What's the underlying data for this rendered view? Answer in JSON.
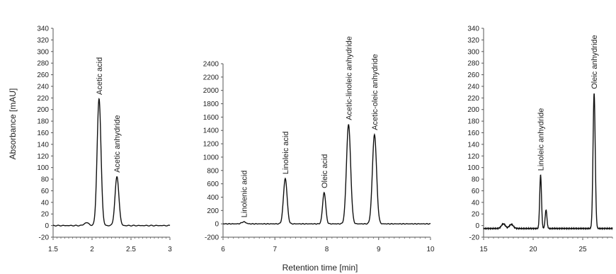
{
  "ylabel": "Absorbance [mAU]",
  "xlabel": "Retention time [min]",
  "chart_data": [
    {
      "type": "line",
      "xlim": [
        1.5,
        3
      ],
      "ylim": [
        -20,
        340
      ],
      "x_ticks": [
        "1.5",
        "2",
        "2.5",
        "3"
      ],
      "y_ticks": [
        "-20",
        "0",
        "20",
        "40",
        "60",
        "80",
        "100",
        "120",
        "140",
        "160",
        "180",
        "200",
        "220",
        "240",
        "260",
        "280",
        "300",
        "320",
        "340"
      ],
      "baseline": 0,
      "peaks": [
        {
          "label": "Acetic acid",
          "x": 2.09,
          "y": 218,
          "width": 0.025
        },
        {
          "label": "Acetic anhydride",
          "x": 2.32,
          "y": 84,
          "width": 0.025
        }
      ],
      "bumps": [
        {
          "x": 1.93,
          "y": 5,
          "width": 0.03
        }
      ]
    },
    {
      "type": "line",
      "xlim": [
        6,
        10
      ],
      "ylim": [
        -200,
        2400
      ],
      "x_ticks": [
        "6",
        "7",
        "8",
        "9",
        "10"
      ],
      "y_ticks": [
        "-200",
        "0",
        "200",
        "400",
        "600",
        "800",
        "1000",
        "1200",
        "1400",
        "1600",
        "1800",
        "2000",
        "2200",
        "2400"
      ],
      "baseline": 0,
      "peaks": [
        {
          "label": "Linolenic acid",
          "x": 6.4,
          "y": 30,
          "width": 0.04
        },
        {
          "label": "Linoleic acid",
          "x": 7.2,
          "y": 680,
          "width": 0.035
        },
        {
          "label": "Oleic acid",
          "x": 7.95,
          "y": 470,
          "width": 0.03
        },
        {
          "label": "Acetic-linoleic anhydride",
          "x": 8.42,
          "y": 1490,
          "width": 0.04
        },
        {
          "label": "Acetic-oleic anhydride",
          "x": 8.92,
          "y": 1340,
          "width": 0.04
        }
      ],
      "bumps": []
    },
    {
      "type": "line",
      "xlim": [
        15,
        28
      ],
      "ylim": [
        -20,
        340
      ],
      "x_ticks": [
        "15",
        "20",
        "25"
      ],
      "y_ticks": [
        "-20",
        "0",
        "20",
        "40",
        "60",
        "80",
        "100",
        "120",
        "140",
        "160",
        "180",
        "200",
        "220",
        "240",
        "260",
        "280",
        "300",
        "320",
        "340"
      ],
      "baseline": -5,
      "peaks": [
        {
          "label": "Linoleic anhydride",
          "x": 20.75,
          "y": 87,
          "width": 0.09
        },
        {
          "label": "Oleic anhydride",
          "x": 26.15,
          "y": 228,
          "width": 0.11
        }
      ],
      "bumps": [
        {
          "x": 21.3,
          "y": 27,
          "width": 0.09
        },
        {
          "x": 17.0,
          "y": 3,
          "width": 0.2
        },
        {
          "x": 17.8,
          "y": 2,
          "width": 0.2
        }
      ]
    }
  ]
}
